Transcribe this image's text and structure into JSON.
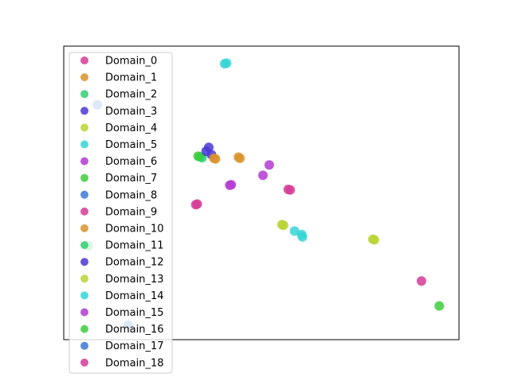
{
  "chart_data": {
    "type": "scatter",
    "title": "",
    "xlabel": "",
    "ylabel": "",
    "axes_ticks": "none",
    "grid": false,
    "legend": "top-left",
    "xlim": [
      0,
      100
    ],
    "ylim": [
      0,
      100
    ],
    "series": [
      {
        "name": "Domain_0",
        "color": "#d63b96",
        "points": [
          [
            57.3,
            51.0
          ],
          [
            56.8,
            51.2
          ]
        ]
      },
      {
        "name": "Domain_1",
        "color": "#d9932a",
        "points": [
          [
            44.2,
            62.2
          ],
          [
            44.6,
            61.8
          ]
        ]
      },
      {
        "name": "Domain_2",
        "color": "#2fd06e",
        "points": [
          [
            34.5,
            62.3
          ],
          [
            35.0,
            62.0
          ]
        ]
      },
      {
        "name": "Domain_3",
        "color": "#4b37d3",
        "points": [
          [
            36.0,
            64.2
          ],
          [
            37.4,
            63.0
          ]
        ]
      },
      {
        "name": "Domain_4",
        "color": "#b8d434",
        "points": [
          [
            55.2,
            39.2
          ],
          [
            55.6,
            39.0
          ]
        ]
      },
      {
        "name": "Domain_5",
        "color": "#35d5d5",
        "points": [
          [
            40.7,
            94.0
          ],
          [
            41.2,
            94.2
          ]
        ]
      },
      {
        "name": "Domain_6",
        "color": "#b23bd3",
        "points": [
          [
            52.0,
            59.5
          ]
        ]
      },
      {
        "name": "Domain_7",
        "color": "#3bce3b",
        "points": [
          [
            95.0,
            11.5
          ]
        ]
      },
      {
        "name": "Domain_8",
        "color": "#3b78d6",
        "points": [
          [
            8.5,
            80.0
          ]
        ]
      },
      {
        "name": "Domain_9",
        "color": "#d63b96",
        "points": [
          [
            90.5,
            20.0
          ]
        ]
      },
      {
        "name": "Domain_10",
        "color": "#d9932a",
        "points": [
          [
            38.0,
            61.8
          ],
          [
            38.4,
            61.6
          ]
        ]
      },
      {
        "name": "Domain_11",
        "color": "#2fd06e",
        "points": [
          [
            6.2,
            32.0
          ]
        ]
      },
      {
        "name": "Domain_12",
        "color": "#4b37d3",
        "points": [
          [
            36.7,
            65.5
          ]
        ]
      },
      {
        "name": "Domain_13",
        "color": "#b8d434",
        "points": [
          [
            78.6,
            34.0
          ],
          [
            78.2,
            34.2
          ]
        ]
      },
      {
        "name": "Domain_14",
        "color": "#35d5d5",
        "points": [
          [
            58.4,
            37.0
          ],
          [
            60.4,
            35.0
          ],
          [
            60.2,
            35.8
          ]
        ]
      },
      {
        "name": "Domain_15",
        "color": "#b23bd3",
        "points": [
          [
            42.4,
            52.8
          ],
          [
            42.0,
            52.6
          ],
          [
            50.4,
            56.0
          ]
        ]
      },
      {
        "name": "Domain_16",
        "color": "#3bce3b",
        "points": [
          [
            34.0,
            62.5
          ]
        ]
      },
      {
        "name": "Domain_17",
        "color": "#3b78d6",
        "points": [
          [
            16.3,
            5.0
          ]
        ]
      },
      {
        "name": "Domain_18",
        "color": "#d63b96",
        "points": [
          [
            33.4,
            46.0
          ],
          [
            33.8,
            46.2
          ]
        ]
      }
    ]
  }
}
